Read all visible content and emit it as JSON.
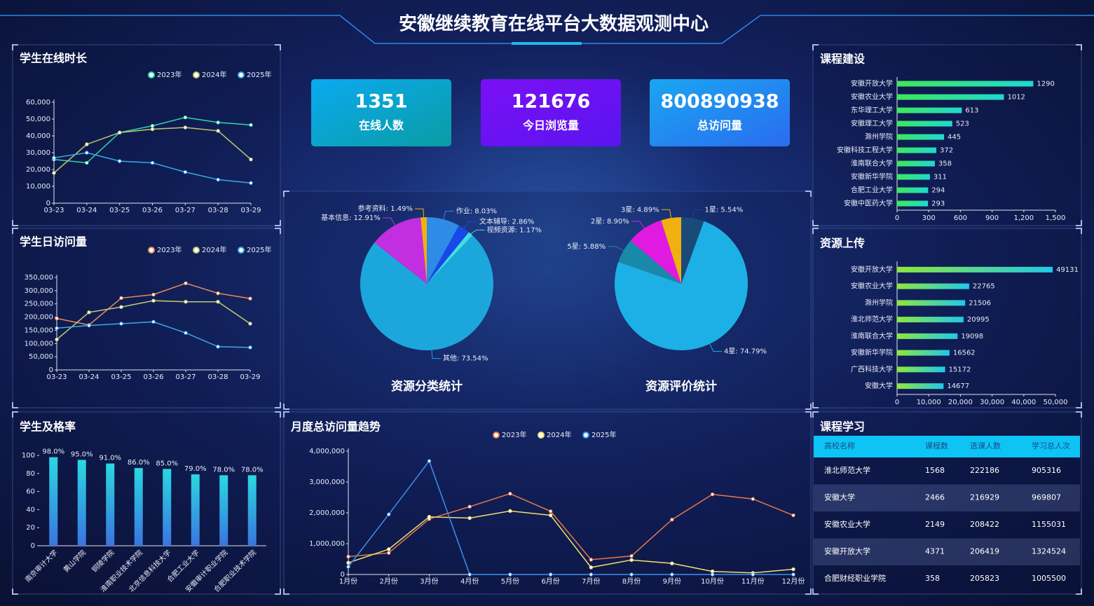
{
  "header": {
    "title": "安徽继续教育在线平台大数据观测中心"
  },
  "kpis": [
    {
      "value": 1351,
      "label": "在线人数"
    },
    {
      "value": 121676,
      "label": "今日浏览量"
    },
    {
      "value": 800890938,
      "label": "总访问量"
    }
  ],
  "table": {
    "title": "课程学习",
    "columns": [
      "高校名称",
      "课程数",
      "选课人数",
      "学习总人次"
    ],
    "rows": [
      [
        "淮北师范大学",
        1568,
        222186,
        905316
      ],
      [
        "安徽大学",
        2466,
        216929,
        969807
      ],
      [
        "安徽农业大学",
        2149,
        208422,
        1155031
      ],
      [
        "安徽开放大学",
        4371,
        206419,
        1324524
      ],
      [
        "合肥财经职业学院",
        358,
        205823,
        1005500
      ]
    ]
  },
  "chart_data": [
    {
      "type": "line",
      "title": "学生在线时长",
      "categories": [
        "03-23",
        "03-24",
        "03-25",
        "03-26",
        "03-27",
        "03-28",
        "03-29"
      ],
      "series": [
        {
          "name": "2023年",
          "color": "#2ed8a8",
          "values": [
            26000,
            24000,
            42000,
            46000,
            51000,
            48000,
            46500
          ]
        },
        {
          "name": "2024年",
          "color": "#c2c870",
          "values": [
            18000,
            35000,
            42000,
            44000,
            45000,
            43000,
            26000
          ]
        },
        {
          "name": "2025年",
          "color": "#3aa8e8",
          "values": [
            27000,
            30000,
            25000,
            24000,
            18500,
            14000,
            12000
          ]
        }
      ],
      "ylim": [
        0,
        60000
      ],
      "yticks": [
        0,
        {
          "value": 10000,
          "label": "10,000"
        },
        {
          "value": 20000,
          "label": "20,000"
        },
        {
          "value": 30000,
          "label": "30,000"
        },
        {
          "value": 40000,
          "label": "40,000"
        },
        {
          "value": 50000,
          "label": "50,000"
        },
        {
          "value": 60000,
          "label": "60,000"
        }
      ],
      "grid": false
    },
    {
      "type": "line",
      "title": "学生日访问量",
      "categories": [
        "03-23",
        "03-24",
        "03-25",
        "03-26",
        "03-27",
        "03-28",
        "03-29"
      ],
      "series": [
        {
          "name": "2023年",
          "color": "#e8885a",
          "values": [
            195000,
            170000,
            272000,
            285000,
            328000,
            290000,
            270000
          ]
        },
        {
          "name": "2024年",
          "color": "#c2c870",
          "values": [
            115000,
            218000,
            238000,
            262000,
            258000,
            258000,
            175000
          ]
        },
        {
          "name": "2025年",
          "color": "#3aa8e8",
          "values": [
            158000,
            168000,
            175000,
            182000,
            140000,
            88000,
            85000
          ]
        }
      ],
      "ylim": [
        0,
        350000
      ],
      "yticks": [
        0,
        {
          "value": 50000,
          "label": "50,000"
        },
        {
          "value": 100000,
          "label": "100,000"
        },
        {
          "value": 150000,
          "label": "150,000"
        },
        {
          "value": 200000,
          "label": "200,000"
        },
        {
          "value": 250000,
          "label": "250,000"
        },
        {
          "value": 300000,
          "label": "300,000"
        },
        {
          "value": 350000,
          "label": "350,000"
        }
      ],
      "grid": false
    },
    {
      "type": "bar",
      "title": "学生及格率",
      "categories": [
        "南京审计大学",
        "黄山学院",
        "铜陵学院",
        "淮南职业技术学院",
        "北京信息科技大学",
        "合肥工业大学",
        "安徽审计职业学院",
        "合肥职业技术学院"
      ],
      "values": [
        98,
        95,
        91,
        86,
        85,
        79,
        78,
        78
      ],
      "value_labels": [
        "98.0%",
        "95.0%",
        "91.0%",
        "86.0%",
        "85.0%",
        "79.0%",
        "78.0%",
        "78.0%"
      ],
      "colors": [
        "#2ad8e0",
        "#3a74e0"
      ],
      "ylim": [
        0,
        100
      ],
      "yticks": [
        0,
        20,
        40,
        60,
        80,
        100
      ],
      "grid": false
    },
    {
      "type": "line",
      "title": "月度总访问量趋势",
      "categories": [
        "1月份",
        "2月份",
        "3月份",
        "4月份",
        "5月份",
        "6月份",
        "7月份",
        "8月份",
        "9月份",
        "10月份",
        "11月份",
        "12月份"
      ],
      "series": [
        {
          "name": "2023年",
          "color": "#e8784a",
          "values": [
            580000,
            700000,
            1800000,
            2200000,
            2620000,
            2050000,
            480000,
            600000,
            1780000,
            2600000,
            2450000,
            1920000
          ]
        },
        {
          "name": "2024年",
          "color": "#f0e070",
          "values": [
            380000,
            820000,
            1870000,
            1830000,
            2060000,
            1920000,
            230000,
            470000,
            360000,
            100000,
            50000,
            170000
          ]
        },
        {
          "name": "2025年",
          "color": "#3a90f0",
          "values": [
            250000,
            1950000,
            3680000,
            0,
            0,
            0,
            0,
            0,
            0,
            0,
            0,
            0
          ]
        }
      ],
      "ylim": [
        0,
        4000000
      ],
      "yticks": [
        0,
        {
          "value": 1000000,
          "label": "1,000,000"
        },
        {
          "value": 2000000,
          "label": "2,000,000"
        },
        {
          "value": 3000000,
          "label": "3,000,000"
        },
        {
          "value": 4000000,
          "label": "4,000,000"
        }
      ],
      "grid": false
    },
    {
      "type": "pie",
      "title": "资源分类统计",
      "values": [
        8.03,
        2.86,
        1.17,
        73.54,
        12.91,
        1.49
      ],
      "value_labels": [
        "作业: 8.03%",
        "文本辅导: 2.86%",
        "视频资源: 1.17%",
        "其他: 73.54%",
        "基本信息: 12.91%",
        "参考资料: 1.49%"
      ],
      "colors": [
        "#2e8be6",
        "#1848e8",
        "#3ee0e0",
        "#1ca7dc",
        "#c22fe0",
        "#f0b010"
      ]
    },
    {
      "type": "pie",
      "title": "资源评价统计",
      "values": [
        5.54,
        74.79,
        5.88,
        8.9,
        4.89
      ],
      "value_labels": [
        "1星: 5.54%",
        "4星: 74.79%",
        "5星: 5.88%",
        "2星: 8.90%",
        "3星: 4.89%"
      ],
      "colors": [
        "#1a4a78",
        "#1cb0e6",
        "#1a88a8",
        "#e01ae0",
        "#f0b010"
      ]
    },
    {
      "type": "hbar",
      "title": "课程建设",
      "categories": [
        "安徽开放大学",
        "安徽农业大学",
        "东华理工大学",
        "安徽理工大学",
        "滁州学院",
        "安徽科技工程大学",
        "淮南联合大学",
        "安徽新华学院",
        "合肥工业大学",
        "安徽中医药大学"
      ],
      "values": [
        1290,
        1012,
        613,
        523,
        445,
        372,
        358,
        311,
        294,
        293
      ],
      "colors": [
        "#3ce85a",
        "#20d8d0"
      ],
      "xlim": [
        0,
        1500
      ],
      "xticks": [
        0,
        300,
        600,
        900,
        {
          "value": 1200,
          "label": "1,200"
        },
        {
          "value": 1500,
          "label": "1,500"
        }
      ]
    },
    {
      "type": "hbar",
      "title": "资源上传",
      "categories": [
        "安徽开放大学",
        "安徽农业大学",
        "滁州学院",
        "淮北师范大学",
        "淮南联合大学",
        "安徽新华学院",
        "广西科技大学",
        "安徽大学"
      ],
      "values": [
        49131,
        22765,
        21506,
        20995,
        19098,
        16562,
        15172,
        14677
      ],
      "colors": [
        "#8ee83a",
        "#20c8e8"
      ],
      "xlim": [
        0,
        50000
      ],
      "xticks": [
        0,
        {
          "value": 10000,
          "label": "10,000"
        },
        {
          "value": 20000,
          "label": "20,000"
        },
        {
          "value": 30000,
          "label": "30,000"
        },
        {
          "value": 40000,
          "label": "40,000"
        },
        {
          "value": 50000,
          "label": "50,000"
        }
      ]
    }
  ]
}
